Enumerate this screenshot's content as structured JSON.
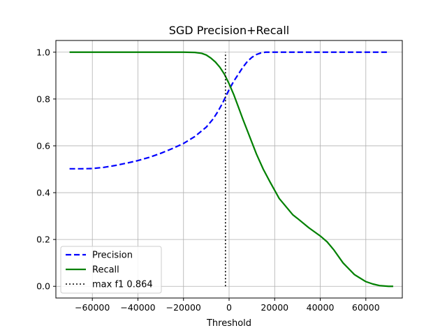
{
  "chart_data": {
    "type": "line",
    "title": "SGD Precision+Recall",
    "xlabel": "Threshold",
    "ylabel": "",
    "xlim": [
      -76000,
      76000
    ],
    "ylim": [
      -0.05,
      1.05
    ],
    "xticks": [
      -60000,
      -40000,
      -20000,
      0,
      20000,
      40000,
      60000
    ],
    "xtick_labels": [
      "−60000",
      "−40000",
      "−20000",
      "0",
      "20000",
      "40000",
      "60000"
    ],
    "yticks": [
      0.0,
      0.2,
      0.4,
      0.6,
      0.8,
      1.0
    ],
    "ytick_labels": [
      "0.0",
      "0.2",
      "0.4",
      "0.6",
      "0.8",
      "1.0"
    ],
    "grid": true,
    "legend_position": "lower-left",
    "series": [
      {
        "name": "Precision",
        "color": "#0000ff",
        "style": "dashed",
        "x": [
          -70000,
          -65000,
          -60000,
          -55000,
          -50000,
          -45000,
          -40000,
          -35000,
          -30000,
          -25000,
          -20000,
          -15000,
          -10000,
          -7000,
          -5000,
          -3000,
          -1500,
          0,
          2000,
          4000,
          6000,
          8000,
          10000,
          12000,
          14000,
          16000,
          20000,
          30000,
          40000,
          50000,
          60000,
          70000
        ],
        "y": [
          0.502,
          0.502,
          0.503,
          0.508,
          0.516,
          0.526,
          0.537,
          0.551,
          0.568,
          0.588,
          0.61,
          0.64,
          0.68,
          0.715,
          0.745,
          0.78,
          0.81,
          0.84,
          0.875,
          0.905,
          0.935,
          0.96,
          0.978,
          0.99,
          0.997,
          1.0,
          1.0,
          1.0,
          1.0,
          1.0,
          1.0,
          1.0
        ]
      },
      {
        "name": "Recall",
        "color": "#008000",
        "style": "solid",
        "x": [
          -70000,
          -60000,
          -50000,
          -40000,
          -30000,
          -20000,
          -15000,
          -12000,
          -10000,
          -8000,
          -6000,
          -4000,
          -2000,
          0,
          2000,
          4000,
          6000,
          8000,
          10000,
          12000,
          15000,
          18000,
          20000,
          22000,
          25000,
          28000,
          30000,
          35000,
          40000,
          43000,
          46000,
          50000,
          55000,
          60000,
          63000,
          66000,
          70000,
          72000
        ],
        "y": [
          1.0,
          1.0,
          1.0,
          1.0,
          1.0,
          1.0,
          0.999,
          0.995,
          0.988,
          0.975,
          0.958,
          0.935,
          0.905,
          0.865,
          0.82,
          0.768,
          0.715,
          0.665,
          0.615,
          0.565,
          0.5,
          0.445,
          0.41,
          0.375,
          0.34,
          0.305,
          0.29,
          0.25,
          0.215,
          0.19,
          0.155,
          0.1,
          0.05,
          0.02,
          0.01,
          0.003,
          0.0,
          0.0
        ]
      },
      {
        "name": "max f1 0.864",
        "color": "#000000",
        "style": "dotted",
        "x": [
          -1600,
          -1600
        ],
        "y": [
          0.0,
          1.0
        ]
      }
    ]
  }
}
